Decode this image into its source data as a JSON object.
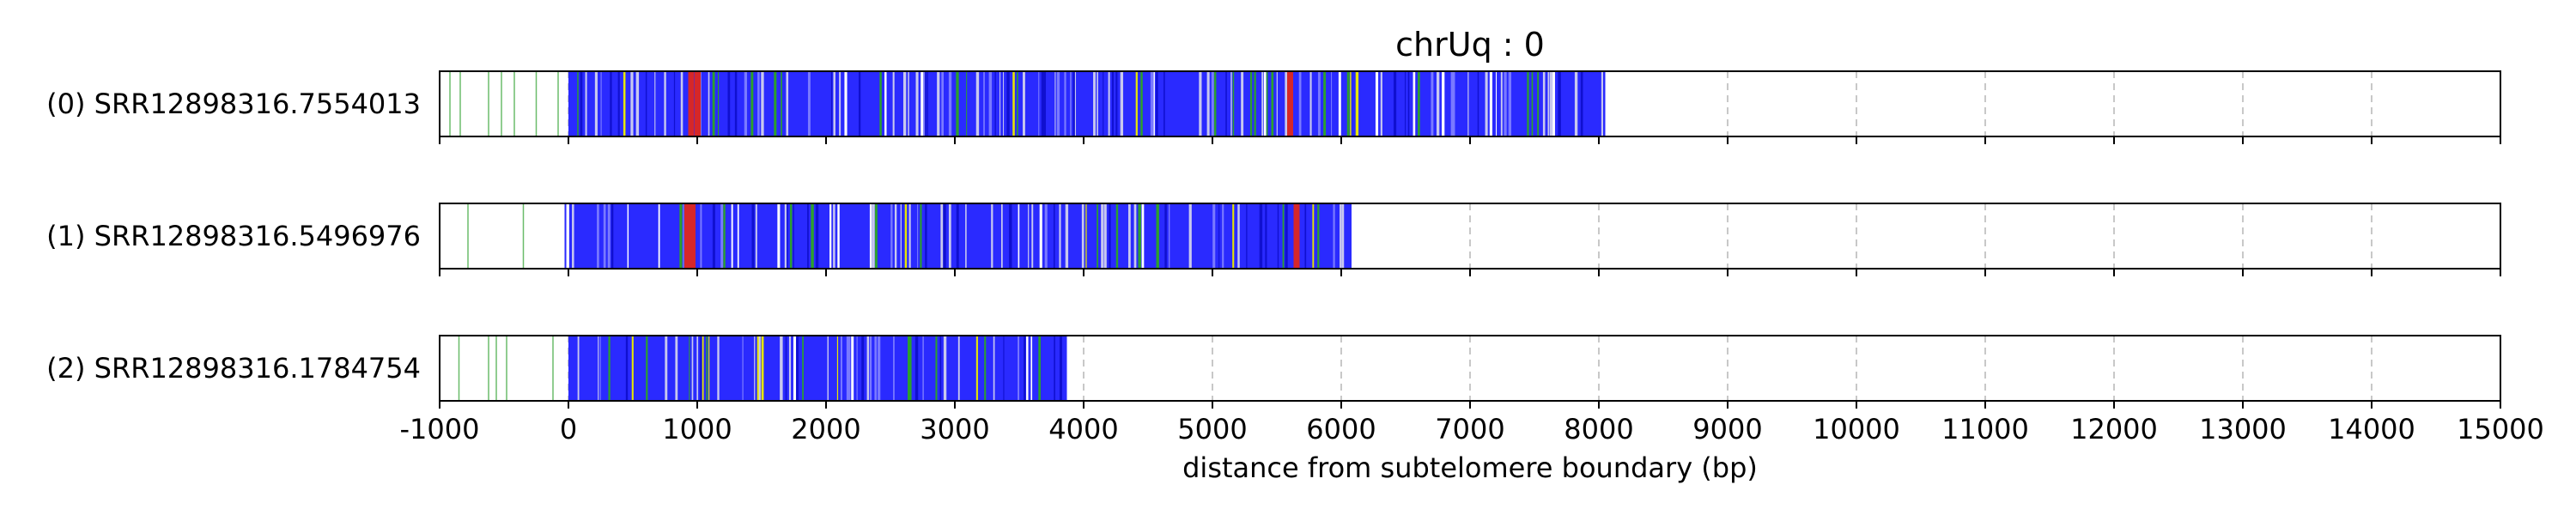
{
  "chart_data": {
    "type": "track",
    "title": "chrUq : 0",
    "xlabel": "distance from subtelomere boundary (bp)",
    "xlim": [
      -1000,
      15000
    ],
    "x_ticks": [
      "-1000",
      "0",
      "1000",
      "2000",
      "3000",
      "4000",
      "5000",
      "6000",
      "7000",
      "8000",
      "9000",
      "10000",
      "11000",
      "12000",
      "13000",
      "14000",
      "15000"
    ],
    "grid": "vertical dashed",
    "colors": {
      "telomere_repeat": "#2a2aff",
      "variant_a": "#2ca02c",
      "variant_b": "#d62728",
      "variant_c": "#e6e600",
      "light": "#c8c8ee"
    },
    "reads": [
      {
        "label": "(0) SRR12898316.7554013",
        "start": 0,
        "end": 8050,
        "green_ticks": [
          -920,
          -840,
          -620,
          -520,
          -420,
          -250,
          -80
        ],
        "red_marks": [
          950,
          1000,
          5600
        ]
      },
      {
        "label": "(1) SRR12898316.5496976",
        "start": -30,
        "end": 6080,
        "green_ticks": [
          -780,
          -350
        ],
        "red_marks": [
          920,
          960,
          5650
        ]
      },
      {
        "label": "(2) SRR12898316.1784754",
        "start": 0,
        "end": 3870,
        "green_ticks": [
          -850,
          -620,
          -560,
          -480,
          -120
        ],
        "red_marks": []
      }
    ]
  }
}
